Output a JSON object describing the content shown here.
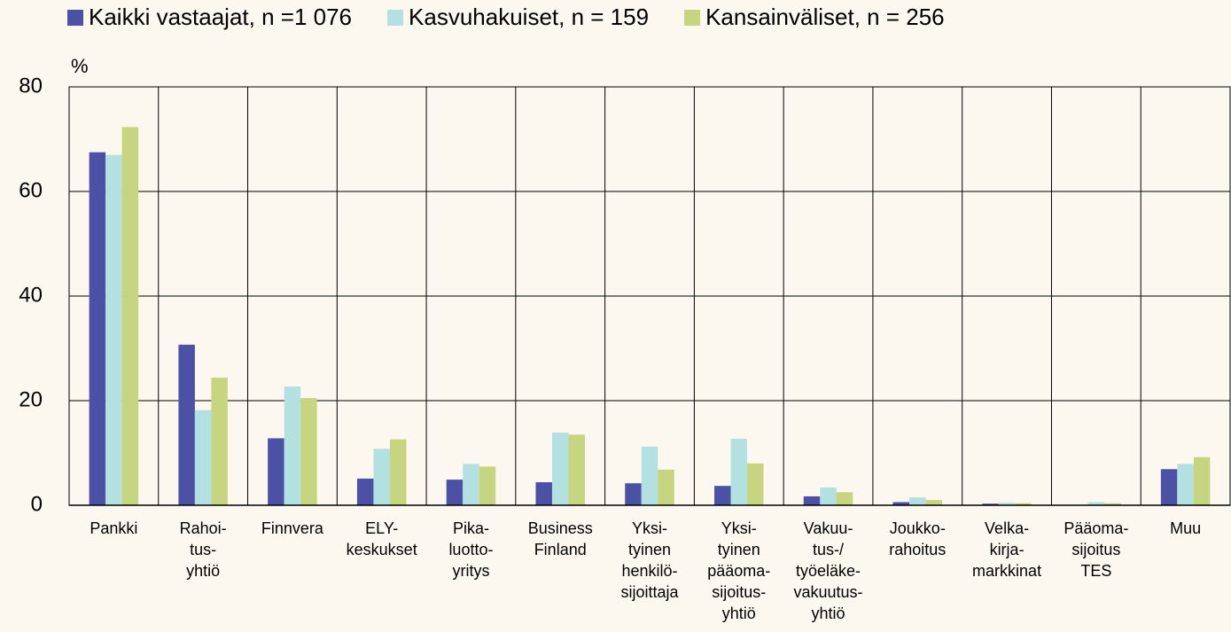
{
  "chart_data": {
    "type": "bar",
    "ylabel": "%",
    "categories": [
      "Pankki",
      "Rahoi-\ntus-\nyhtiö",
      "Finnvera",
      "ELY-\nkeskukset",
      "Pika-\nluotto-\nyritys",
      "Business\nFinland",
      "Yksi-\ntyinen\nhenkilö-\nsijoittaja",
      "Yksi-\ntyinen\npääoma-\nsijoitus-\nyhtiö",
      "Vakuu-\ntus-/\ntyöeläke-\nvakuutus-\nyhtiö",
      "Joukko-\nrahoitus",
      "Velka-\nkirja-\nmarkkinat",
      "Pääoma-\nsijoitus\nTES",
      "Muu"
    ],
    "series": [
      {
        "name": "Kaikki vastaajat, n =1 076",
        "color": "#4b52a5",
        "values": [
          67.5,
          30.7,
          12.8,
          5.1,
          4.9,
          4.4,
          4.2,
          3.7,
          1.7,
          0.6,
          0.3,
          0,
          6.9
        ]
      },
      {
        "name": "Kasvuhakuiset, n = 159",
        "color": "#b3e0e0",
        "values": [
          67,
          18.2,
          22.7,
          10.8,
          7.9,
          13.9,
          11.2,
          12.7,
          3.4,
          1.5,
          0.5,
          0.6,
          7.9
        ]
      },
      {
        "name": "Kansainväliset, n = 256",
        "color": "#c8d580",
        "values": [
          72.3,
          24.4,
          20.5,
          12.6,
          7.4,
          13.5,
          6.8,
          8.0,
          2.5,
          1.0,
          0.4,
          0.4,
          9.2
        ]
      }
    ],
    "ylim": [
      0,
      80
    ],
    "yticks": [
      0,
      20,
      40,
      60,
      80
    ],
    "grid": true
  }
}
